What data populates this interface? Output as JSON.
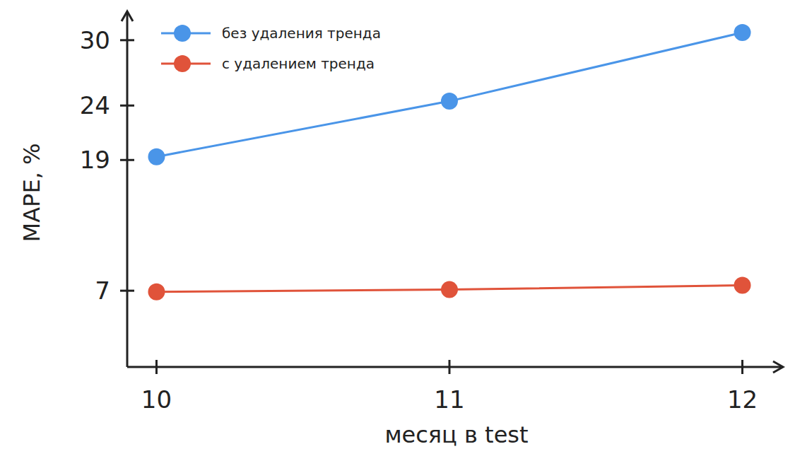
{
  "chart_data": {
    "type": "line",
    "x_label": "месяц в test",
    "y_label": "MAPE, %",
    "x": [
      10,
      11,
      12
    ],
    "xlim": [
      9.9,
      12.1
    ],
    "xticks": [
      10,
      11,
      12
    ],
    "ylim": [
      0,
      32
    ],
    "yticks": [
      7,
      19,
      24,
      30
    ],
    "grid": false,
    "legend": "upper left",
    "marker": "circle",
    "series": [
      {
        "name": "без удаления тренда",
        "color": "#4a95e8",
        "values": [
          19.3,
          24.4,
          30.7
        ]
      },
      {
        "name": "с удалением тренда",
        "color": "#e0533a",
        "values": [
          6.9,
          7.1,
          7.5
        ]
      }
    ]
  }
}
